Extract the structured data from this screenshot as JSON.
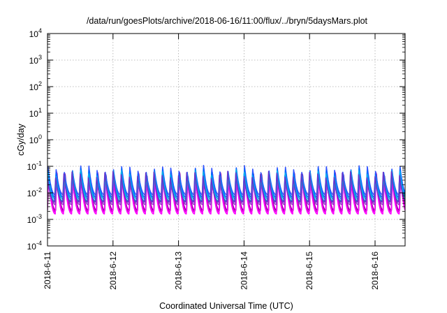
{
  "chart_data": {
    "type": "line",
    "title": "/data/run/goesPlots/archive/2018-06-16/11:00/flux/../bryn/5daysMars.plot",
    "xlabel": "Coordinated Universal Time (UTC)",
    "ylabel": "cGy/day",
    "yscale": "log",
    "ylim": [
      0.0001,
      10000
    ],
    "y_ticks": [
      {
        "value": 0.0001,
        "base": "10",
        "exp": "-4"
      },
      {
        "value": 0.001,
        "base": "10",
        "exp": "-3"
      },
      {
        "value": 0.01,
        "base": "10",
        "exp": "-2"
      },
      {
        "value": 0.1,
        "base": "10",
        "exp": "-1"
      },
      {
        "value": 1,
        "base": "10",
        "exp": "0"
      },
      {
        "value": 10,
        "base": "10",
        "exp": "1"
      },
      {
        "value": 100,
        "base": "10",
        "exp": "2"
      },
      {
        "value": 1000,
        "base": "10",
        "exp": "3"
      },
      {
        "value": 10000,
        "base": "10",
        "exp": "4"
      }
    ],
    "xlim": [
      "2018-06-11T00:00",
      "2018-06-16T11:00"
    ],
    "x_ticks": [
      "2018-6-11",
      "2018-6-12",
      "2018-6-13",
      "2018-6-14",
      "2018-6-15",
      "2018-6-16"
    ],
    "grid": true,
    "period_hours": 3,
    "series": [
      {
        "color": "#8c0099",
        "peak": 0.058,
        "trough": 0.0022
      },
      {
        "color": "#cc00cc",
        "peak": 0.048,
        "trough": 0.0019
      },
      {
        "color": "#ff00ff",
        "peak": 0.04,
        "trough": 0.0016
      },
      {
        "color": "#9933cc",
        "peak": 0.062,
        "trough": 0.0036
      },
      {
        "color": "#3355ff",
        "peak": 0.078,
        "trough": 0.0085
      },
      {
        "color": "#0066ff",
        "peak": 0.07,
        "trough": 0.007
      },
      {
        "color": "#00aaee",
        "peak": 0.066,
        "trough": 0.006
      },
      {
        "color": "#00cccc",
        "peak": 0.04,
        "trough": 0.005
      },
      {
        "color": "#6633cc",
        "peak": 0.052,
        "trough": 0.0045
      }
    ]
  }
}
